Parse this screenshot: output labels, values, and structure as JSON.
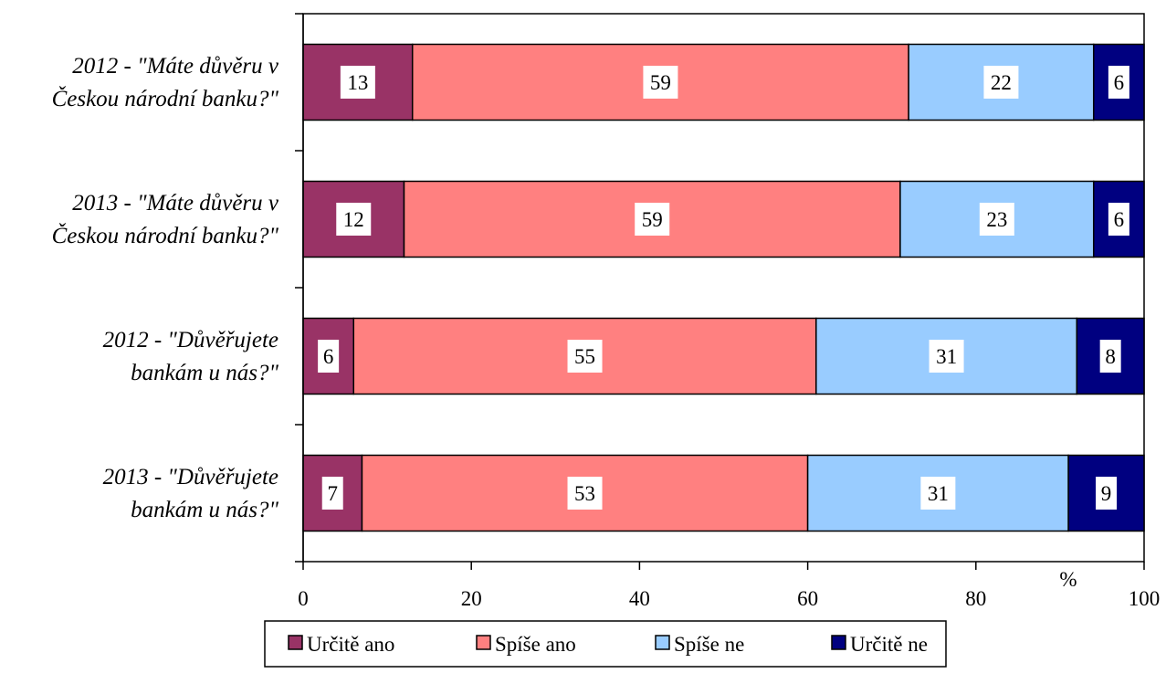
{
  "chart_data": {
    "type": "bar",
    "orientation": "horizontal",
    "stacked": true,
    "categories": [
      [
        "2012 - \"Máte důvěru v",
        "Českou národní banku?\""
      ],
      [
        "2013 - \"Máte důvěru v",
        "Českou národní banku?\""
      ],
      [
        "2012 - \"Důvěřujete",
        "bankám u nás?\""
      ],
      [
        "2013 - \"Důvěřujete",
        "bankám u nás?\""
      ]
    ],
    "series": [
      {
        "name": "Určitě ano",
        "values": [
          13,
          12,
          6,
          7
        ],
        "color": "#993366"
      },
      {
        "name": "Spíše ano",
        "values": [
          59,
          59,
          55,
          53
        ],
        "color": "#FF8080"
      },
      {
        "name": "Spíše ne",
        "values": [
          22,
          23,
          31,
          31
        ],
        "color": "#99CCFF"
      },
      {
        "name": "Určitě ne",
        "values": [
          6,
          6,
          8,
          9
        ],
        "color": "#000080"
      }
    ],
    "xlim": [
      0,
      100
    ],
    "xticks": [
      0,
      20,
      40,
      60,
      80,
      100
    ],
    "xunit": "%",
    "grid": false,
    "legend_position": "bottom",
    "data_labels": true
  }
}
